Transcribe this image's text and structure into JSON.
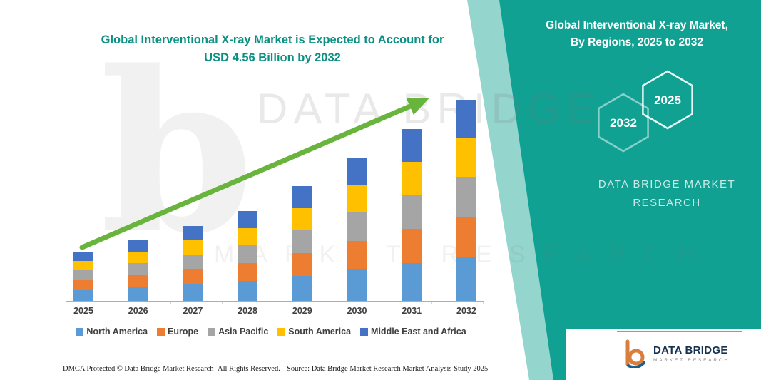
{
  "title": {
    "line1": "Global Interventional X-ray Market is Expected to Account for",
    "line2": "USD 4.56 Billion by 2032"
  },
  "watermark": {
    "letter": "b",
    "line1": "DATA BRIDGE",
    "line2": "MARKET RESEARCH"
  },
  "right_panel": {
    "heading_line1": "Global Interventional X-ray Market,",
    "heading_line2": "By Regions, 2025 to 2032",
    "hex_left_label": "2032",
    "hex_right_label": "2025",
    "brand_line1": "DATA BRIDGE MARKET",
    "brand_line2": "RESEARCH",
    "accent_color": "#11a192"
  },
  "footer": {
    "dmca": "DMCA Protected © Data Bridge Market Research-  All Rights Reserved.",
    "source": "Source: Data Bridge Market Research  Market Analysis Study 2025",
    "logo_title": "DATA BRIDGE",
    "logo_subtitle": "MARKET RESEARCH"
  },
  "chart_data": {
    "type": "bar",
    "stacked": true,
    "title": "Global Interventional X-ray Market is Expected to Account for USD 4.56 Billion by 2032",
    "unit": "USD Billion",
    "total_2032": 4.56,
    "legend_position": "bottom",
    "ylim": [
      0,
      5
    ],
    "categories": [
      "2025",
      "2026",
      "2027",
      "2028",
      "2029",
      "2030",
      "2031",
      "2032"
    ],
    "series": [
      {
        "name": "North America",
        "color": "#5B9BD5",
        "values": [
          0.24,
          0.3,
          0.37,
          0.45,
          0.57,
          0.71,
          0.86,
          1.0
        ]
      },
      {
        "name": "Europe",
        "color": "#ED7D31",
        "values": [
          0.22,
          0.27,
          0.34,
          0.41,
          0.52,
          0.64,
          0.78,
          0.91
        ]
      },
      {
        "name": "Asia Pacific",
        "color": "#A5A5A5",
        "values": [
          0.22,
          0.27,
          0.34,
          0.41,
          0.52,
          0.64,
          0.78,
          0.91
        ]
      },
      {
        "name": "South America",
        "color": "#FFC000",
        "values": [
          0.21,
          0.26,
          0.32,
          0.39,
          0.5,
          0.61,
          0.74,
          0.87
        ]
      },
      {
        "name": "Middle East and Africa",
        "color": "#4472C4",
        "values": [
          0.21,
          0.26,
          0.32,
          0.39,
          0.5,
          0.61,
          0.74,
          0.87
        ]
      }
    ]
  }
}
